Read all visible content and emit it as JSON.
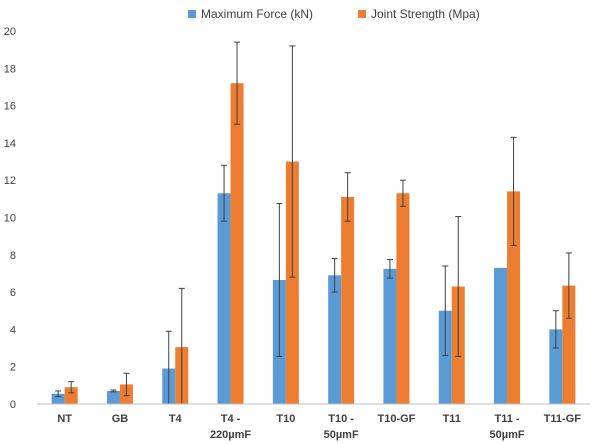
{
  "chart_data": {
    "type": "bar",
    "title": "",
    "xlabel": "",
    "ylabel": "",
    "ylim": [
      0,
      20
    ],
    "yticks": [
      0,
      2,
      4,
      6,
      8,
      10,
      12,
      14,
      16,
      18,
      20
    ],
    "grid": false,
    "legend_position": "top-right",
    "categories": [
      [
        "NT"
      ],
      [
        "GB"
      ],
      [
        "T4"
      ],
      [
        "T4 -",
        "220µmF"
      ],
      [
        "T10"
      ],
      [
        "T10 -",
        "50µmF"
      ],
      [
        "T10-GF"
      ],
      [
        "T11"
      ],
      [
        "T11 -",
        "50µmF"
      ],
      [
        "T11-GF"
      ]
    ],
    "series": [
      {
        "name": "Maximum Force (kN)",
        "color": "#5b9bd5",
        "values": [
          0.55,
          0.7,
          1.9,
          11.3,
          6.65,
          6.9,
          7.25,
          5.0,
          7.3,
          4.0
        ],
        "errors": [
          0.15,
          0.05,
          2.0,
          1.5,
          4.1,
          0.9,
          0.5,
          2.4,
          0.0,
          1.0
        ]
      },
      {
        "name": "Joint Strength (Mpa)",
        "color": "#ed7d31",
        "values": [
          0.9,
          1.05,
          3.05,
          17.2,
          13.0,
          11.1,
          11.3,
          6.3,
          11.4,
          6.35
        ],
        "errors": [
          0.3,
          0.6,
          3.15,
          2.2,
          6.2,
          1.3,
          0.7,
          3.75,
          2.9,
          1.75
        ]
      }
    ]
  }
}
